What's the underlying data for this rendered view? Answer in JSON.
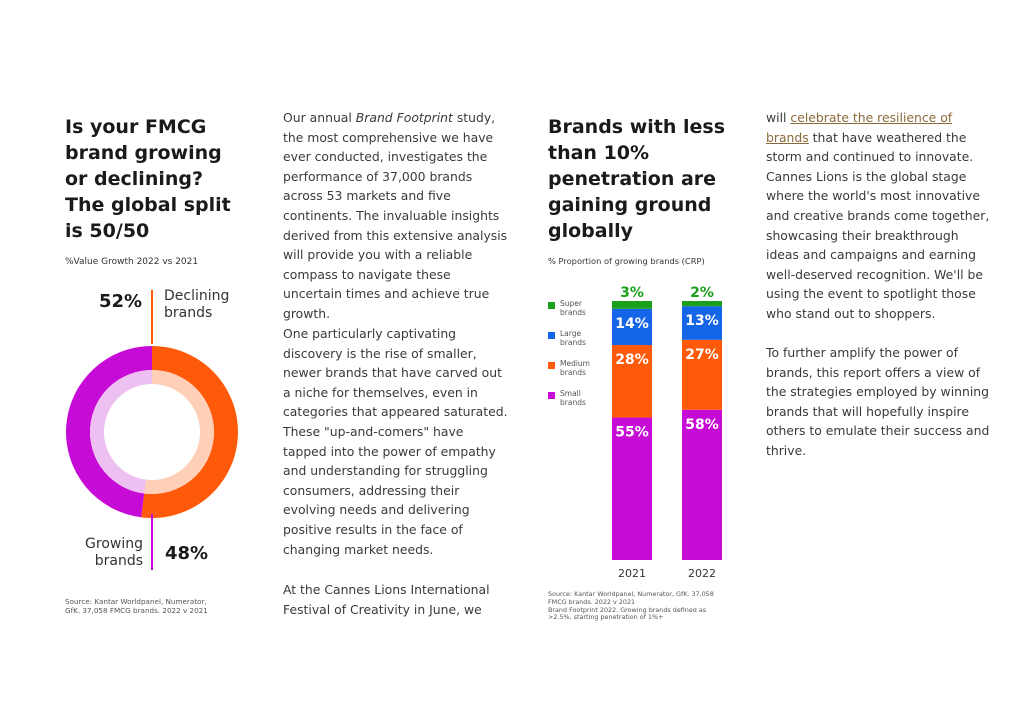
{
  "left": {
    "heading": [
      "Is your FMCG",
      "brand growing",
      "or declining?",
      "The global split",
      "is 50/50"
    ],
    "subtitle": "%Value Growth 2022 vs 2021",
    "donut": {
      "declining_pct": "52%",
      "declining_label": [
        "Declining",
        "brands"
      ],
      "growing_pct": "48%",
      "growing_label": [
        "Growing",
        "brands"
      ],
      "declining_color": "#ff5a0a",
      "declining_inner_color": "#ffcfb8",
      "growing_color": "#c60bd6",
      "growing_inner_color": "#eec0f2"
    },
    "source": [
      "Source: Kantar Worldpanel, Numerator,",
      "GfK. 37,058 FMCG brands. 2022 v 2021"
    ]
  },
  "col2": {
    "para1_prefix": "Our annual ",
    "para1_italic": "Brand Footprint",
    "para1_rest": " study, the most comprehensive we have ever conducted, investigates the performance of 37,000 brands across 53 markets and five continents. The invaluable insights derived from this extensive analysis will provide you with a reliable compass to navigate these uncertain times and achieve true growth.",
    "para2": "One particularly captivating discovery is the rise of smaller, newer brands that have carved out a niche for themselves, even in categories that appeared saturated. These \"up-and-comers\" have tapped into the power of empathy and understanding for struggling consumers, addressing their evolving needs and delivering positive results in the face of changing market needs.",
    "para3": "At the Cannes Lions International Festival of Creativity in June, we"
  },
  "col3": {
    "heading": [
      "Brands with less",
      "than 10%",
      "penetration are",
      "gaining ground",
      "globally"
    ],
    "subtitle": "% Proportion of growing brands (CRP)",
    "source": [
      "Source: Kantar Worldpanel, Numerator, GfK. 37,058",
      "FMCG brands. 2022 v 2021",
      "Brand Footprint 2022. Growing brands defined as",
      ">2.5%, starting penetration of 1%+"
    ]
  },
  "col4": {
    "para1_prefix": "will ",
    "para1_link": "celebrate the resilience of brands",
    "para1_rest": " that have weathered the storm and continued to innovate. Cannes Lions is the global stage where the world's most innovative and creative brands come together, showcasing their breakthrough ideas and campaigns and earning well-deserved recognition. We'll be using the event to spotlight those who stand out to shoppers.",
    "para2": "To further amplify the power of brands, this report offers a view of the strategies employed by winning brands that will hopefully inspire others to emulate their success and thrive."
  },
  "chart_data": [
    {
      "type": "pie",
      "title": "%Value Growth 2022 vs 2021",
      "categories": [
        "Declining brands",
        "Growing brands"
      ],
      "values": [
        52,
        48
      ],
      "colors": [
        "#ff5a0a",
        "#c60bd6"
      ]
    },
    {
      "type": "bar",
      "stacked": true,
      "title": "% Proportion of growing brands (CRP)",
      "categories": [
        "2021",
        "2022"
      ],
      "series": [
        {
          "name": "Small brands",
          "legend": [
            "Small",
            "brands"
          ],
          "values": [
            55,
            58
          ],
          "labels": [
            "55%",
            "58%"
          ],
          "color": "#c60bd6"
        },
        {
          "name": "Medium brands",
          "legend": [
            "Medium",
            "brands"
          ],
          "values": [
            28,
            27
          ],
          "labels": [
            "28%",
            "27%"
          ],
          "color": "#ff5a0a"
        },
        {
          "name": "Large brands",
          "legend": [
            "Large",
            "brands"
          ],
          "values": [
            14,
            13
          ],
          "labels": [
            "14%",
            "13%"
          ],
          "color": "#1565e8"
        },
        {
          "name": "Super brands",
          "legend": [
            "Super",
            "brands"
          ],
          "values": [
            3,
            2
          ],
          "labels": [
            "3%",
            "2%"
          ],
          "color": "#1aa01a"
        }
      ],
      "ylim": [
        0,
        100
      ]
    }
  ]
}
